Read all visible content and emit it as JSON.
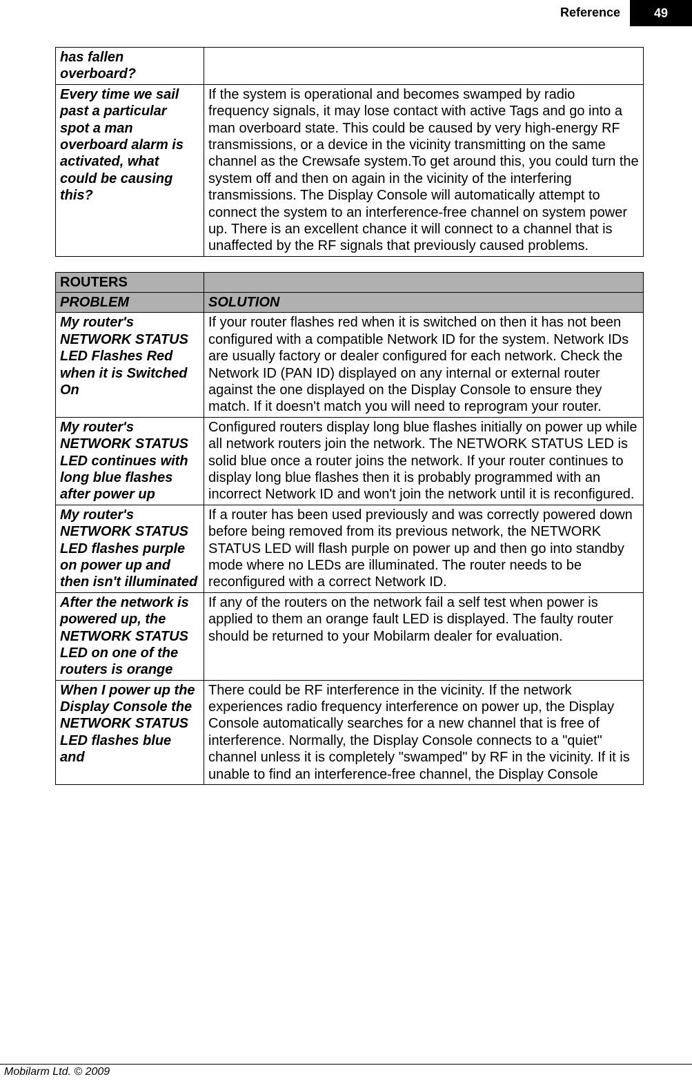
{
  "header": {
    "section": "Reference",
    "page_number": "49"
  },
  "table1": {
    "rows": [
      {
        "problem": "has fallen overboard?",
        "solution": ""
      },
      {
        "problem": "Every time we sail past a particular spot a man overboard alarm is activated, what could be causing this?",
        "solution": "If the system is operational and becomes swamped by radio frequency signals, it may lose contact with active Tags and go into a man overboard state. This could be caused by very high-energy RF transmissions, or a device in the vicinity transmitting on the same channel as the Crewsafe system.To get around this, you could turn the system off and then on again in the vicinity of the interfering transmissions. The Display Console will automatically attempt to connect the system to an interference-free channel on system power up. There is an excellent chance it will connect to a channel that is unaffected by the RF signals that previously caused problems."
      }
    ]
  },
  "table2": {
    "section_header": "ROUTERS",
    "col_problem": "PROBLEM",
    "col_solution": "SOLUTION",
    "rows": [
      {
        "problem": "My router's NETWORK STATUS LED Flashes Red when it is Switched On",
        "solution": "If your router flashes red when it is switched on then it has not been configured with a compatible Network ID for the system. Network IDs are usually factory or dealer configured for each network. Check the Network ID (PAN ID) displayed on any internal or external router against the one displayed on the Display Console to ensure they match. If it doesn't match you will need to reprogram your router."
      },
      {
        "problem": "My router's NETWORK STATUS LED continues with long blue flashes after power up",
        "solution": "Configured routers display long blue flashes initially on power up while all network routers join the network. The NETWORK STATUS LED is solid blue once a router joins the network. If your router continues to display long blue flashes then it is probably programmed with an incorrect Network ID and won't join the network until it is reconfigured."
      },
      {
        "problem": "My router's NETWORK STATUS LED flashes purple on power up and then isn't illuminated",
        "solution": "If a router has been used previously and was correctly powered down before being removed from its previous network, the NETWORK STATUS LED will flash purple on power up and then go into standby mode where no LEDs are illuminated. The router needs to be reconfigured with a correct Network ID."
      },
      {
        "problem": "After the network is  powered up, the NETWORK STATUS LED on one of the routers is orange",
        "solution": "If any of the routers on the network fail a self test when power is applied to them an orange fault LED is displayed. The faulty router should be returned to your Mobilarm dealer for evaluation."
      },
      {
        "problem": "When I power up the Display Console the NETWORK STATUS LED flashes blue and",
        "solution": "There could be RF interference in the vicinity. If the network experiences radio frequency interference on power up, the Display Console automatically searches for a new channel that is free of interference. Normally, the Display Console connects to a \"quiet\" channel unless it is completely \"swamped\" by RF in the vicinity. If it is unable to find an interference-free channel, the Display Console"
      }
    ]
  },
  "footer": {
    "copyright": "Mobilarm Ltd. © 2009"
  }
}
